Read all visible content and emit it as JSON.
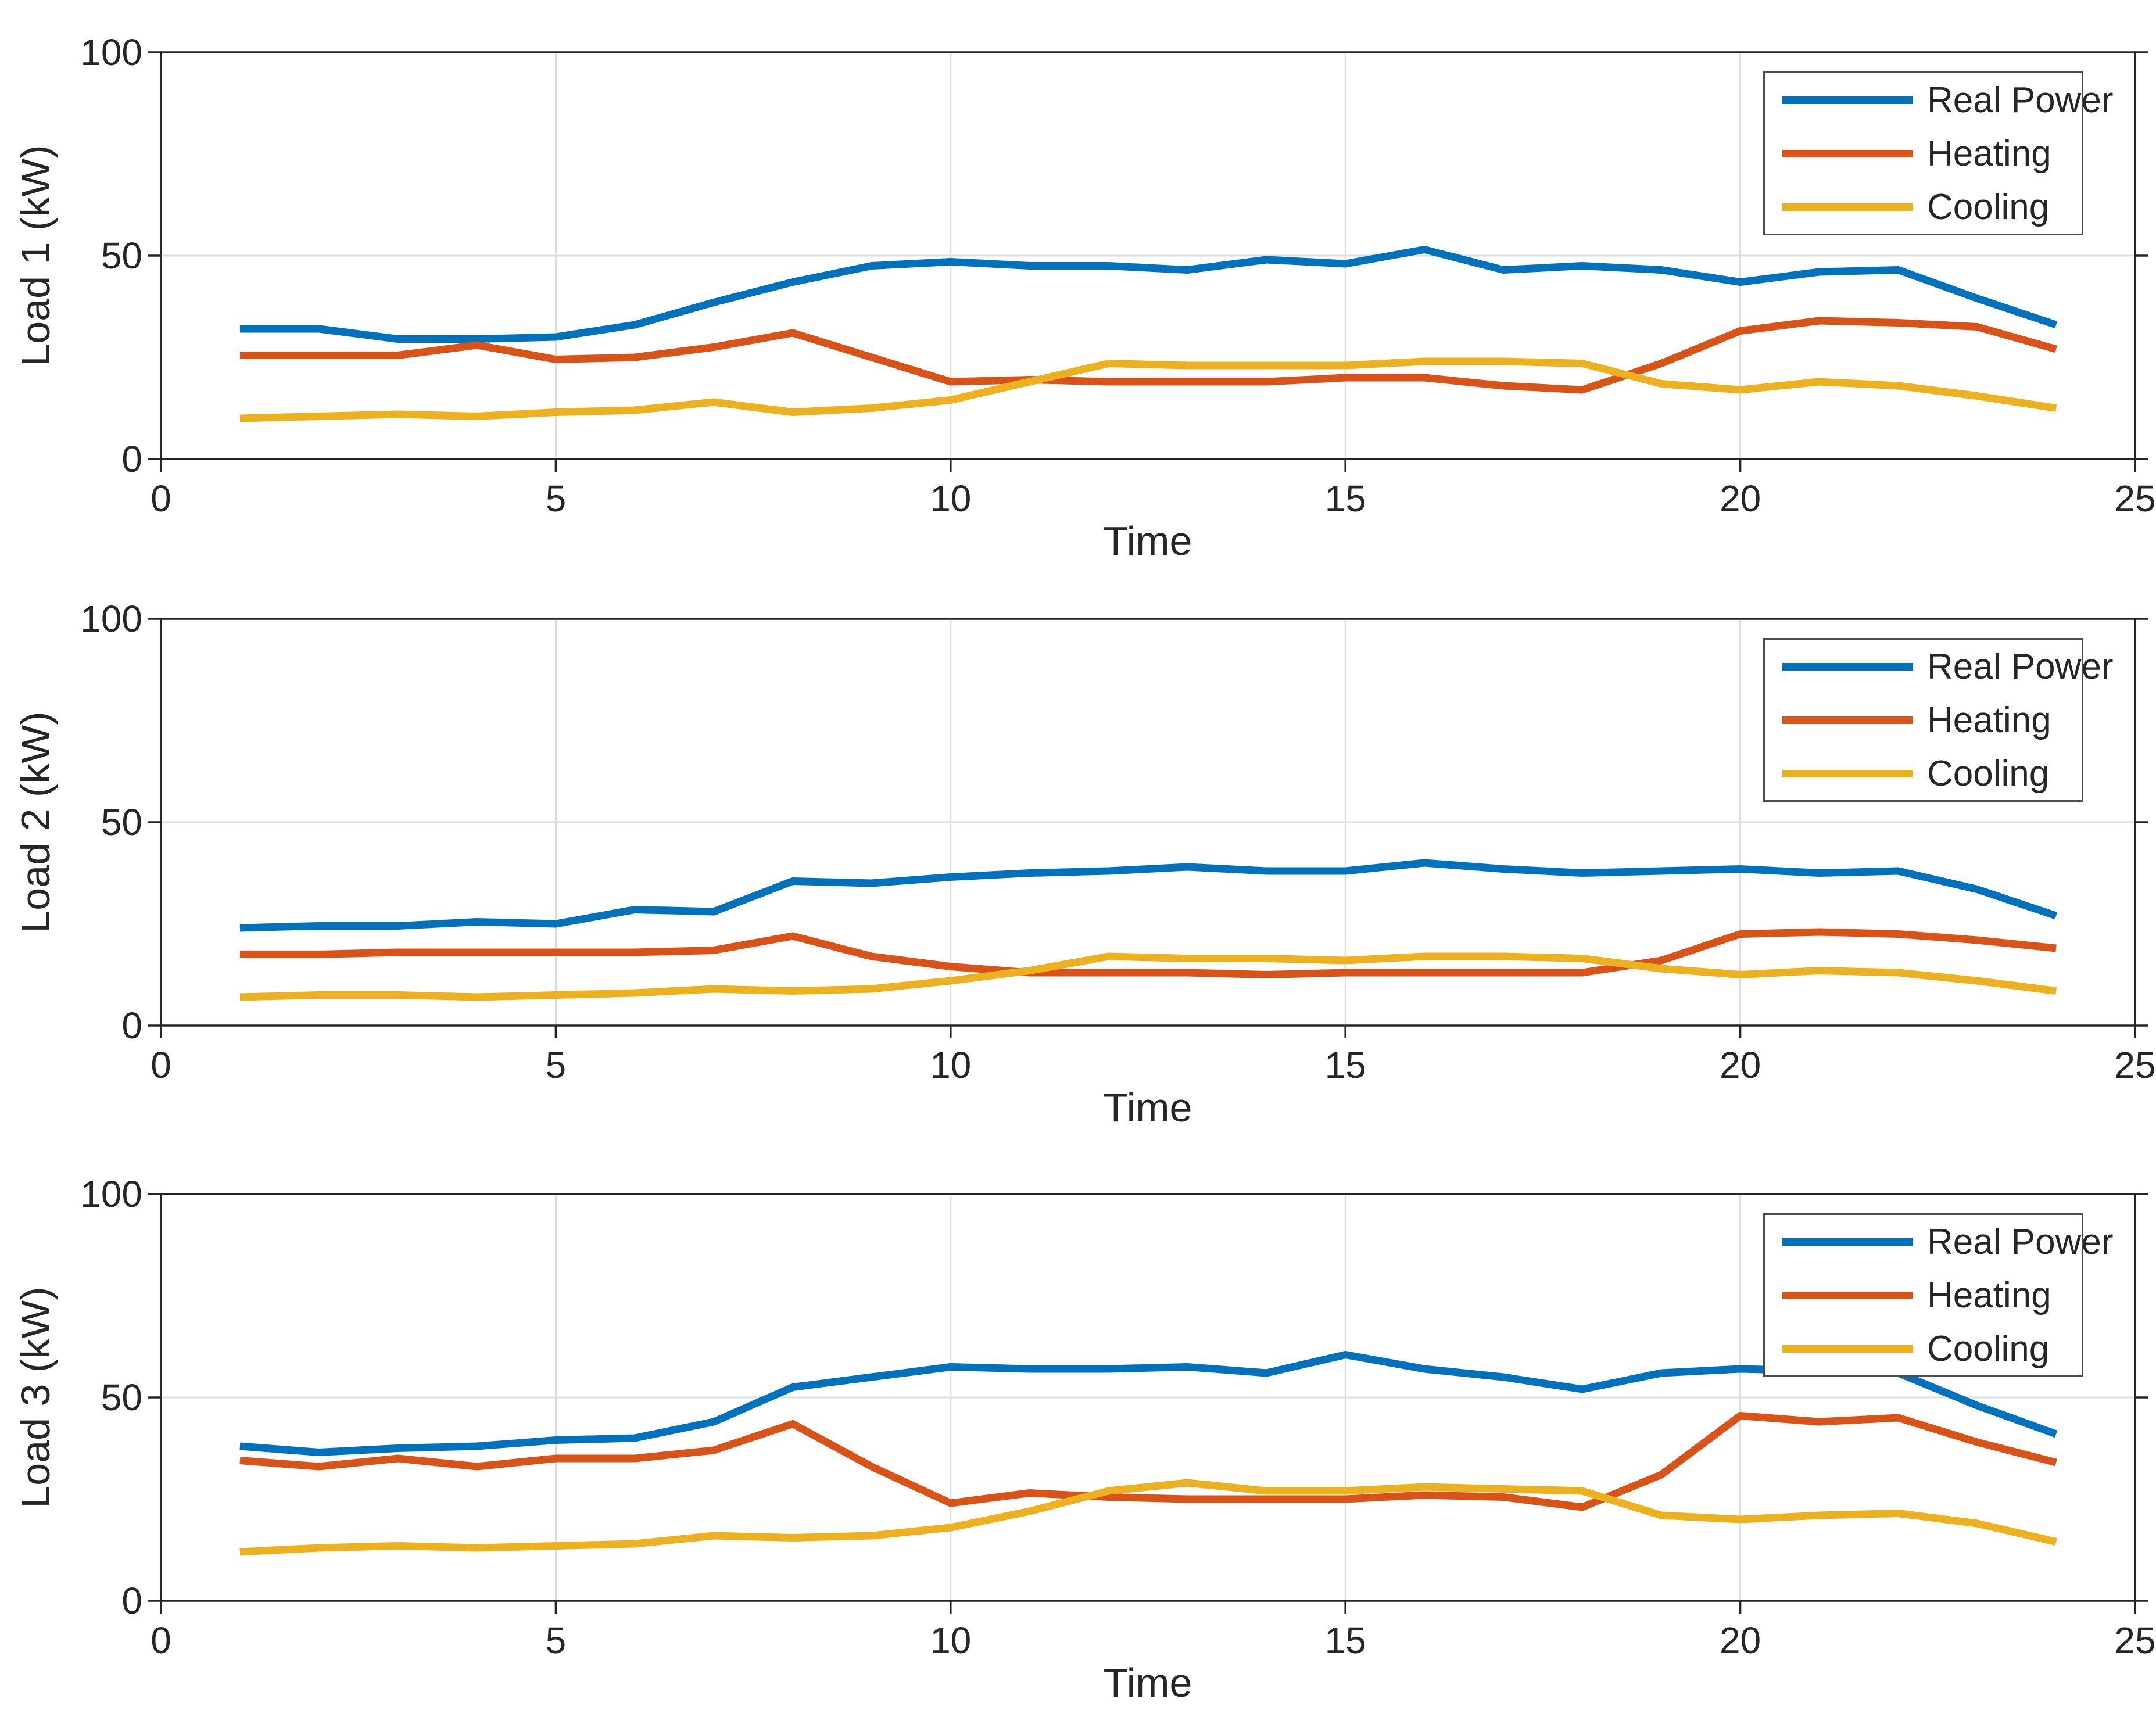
{
  "figure": {
    "background_color": "#ffffff",
    "axes_color": "#262626",
    "grid_color": "#dedede",
    "legend_border_color": "#4d4d4d"
  },
  "legend": {
    "items": [
      "Real Power",
      "Heating",
      "Cooling"
    ]
  },
  "series_colors": [
    "#0072BD",
    "#D95319",
    "#EDB120"
  ],
  "chart_data": [
    {
      "type": "line",
      "ylabel": "Load 1 (kW)",
      "xlabel": "Time",
      "xlim": [
        0,
        25
      ],
      "ylim": [
        0,
        100
      ],
      "xticks": [
        0,
        5,
        10,
        15,
        20,
        25
      ],
      "yticks": [
        0,
        50,
        100
      ],
      "grid": true,
      "legend_position": "top-right",
      "x": [
        1,
        2,
        3,
        4,
        5,
        6,
        7,
        8,
        9,
        10,
        11,
        12,
        13,
        14,
        15,
        16,
        17,
        18,
        19,
        20,
        21,
        22,
        23,
        24
      ],
      "series": [
        {
          "name": "Real Power",
          "values": [
            32,
            32,
            29.5,
            29.5,
            30,
            33,
            38.5,
            43.5,
            47.5,
            48.5,
            47.5,
            47.5,
            46.5,
            49,
            48,
            51.5,
            46.5,
            47.5,
            46.5,
            43.5,
            46,
            46.5,
            39.5,
            33
          ]
        },
        {
          "name": "Heating",
          "values": [
            25.5,
            25.5,
            25.5,
            28,
            24.5,
            25,
            27.5,
            31,
            25,
            19,
            19.5,
            19,
            19,
            19,
            20,
            20,
            18,
            17,
            23.5,
            31.5,
            34,
            33.5,
            32.5,
            27
          ]
        },
        {
          "name": "Cooling",
          "values": [
            10,
            10.5,
            11,
            10.5,
            11.5,
            12,
            14,
            11.5,
            12.5,
            14.5,
            19,
            23.5,
            23,
            23,
            23,
            24,
            24,
            23.5,
            18.5,
            17,
            19,
            18,
            15.5,
            12.5
          ]
        }
      ]
    },
    {
      "type": "line",
      "ylabel": "Load 2 (kW)",
      "xlabel": "Time",
      "xlim": [
        0,
        25
      ],
      "ylim": [
        0,
        100
      ],
      "xticks": [
        0,
        5,
        10,
        15,
        20,
        25
      ],
      "yticks": [
        0,
        50,
        100
      ],
      "grid": true,
      "legend_position": "top-right",
      "x": [
        1,
        2,
        3,
        4,
        5,
        6,
        7,
        8,
        9,
        10,
        11,
        12,
        13,
        14,
        15,
        16,
        17,
        18,
        19,
        20,
        21,
        22,
        23,
        24
      ],
      "series": [
        {
          "name": "Real Power",
          "values": [
            24,
            24.5,
            24.5,
            25.5,
            25,
            28.5,
            28,
            35.5,
            35,
            36.5,
            37.5,
            38,
            39,
            38,
            38,
            40,
            38.5,
            37.5,
            38,
            38.5,
            37.5,
            38,
            33.5,
            27
          ]
        },
        {
          "name": "Heating",
          "values": [
            17.5,
            17.5,
            18,
            18,
            18,
            18,
            18.5,
            22,
            17,
            14.5,
            13,
            13,
            13,
            12.5,
            13,
            13,
            13,
            13,
            16,
            22.5,
            23,
            22.5,
            21,
            19
          ]
        },
        {
          "name": "Cooling",
          "values": [
            7,
            7.5,
            7.5,
            7,
            7.5,
            8,
            9,
            8.5,
            9,
            11,
            13.5,
            17,
            16.5,
            16.5,
            16,
            17,
            17,
            16.5,
            14,
            12.5,
            13.5,
            13,
            11,
            8.5
          ]
        }
      ]
    },
    {
      "type": "line",
      "ylabel": "Load 3 (kW)",
      "xlabel": "Time",
      "xlim": [
        0,
        25
      ],
      "ylim": [
        0,
        100
      ],
      "xticks": [
        0,
        5,
        10,
        15,
        20,
        25
      ],
      "yticks": [
        0,
        50,
        100
      ],
      "grid": true,
      "legend_position": "top-right",
      "x": [
        1,
        2,
        3,
        4,
        5,
        6,
        7,
        8,
        9,
        10,
        11,
        12,
        13,
        14,
        15,
        16,
        17,
        18,
        19,
        20,
        21,
        22,
        23,
        24
      ],
      "series": [
        {
          "name": "Real Power",
          "values": [
            38,
            36.5,
            37.5,
            38,
            39.5,
            40,
            44,
            52.5,
            55,
            57.5,
            57,
            57,
            57.5,
            56,
            60.5,
            57,
            55,
            52,
            56,
            57,
            56.5,
            56,
            48,
            41
          ]
        },
        {
          "name": "Heating",
          "values": [
            34.5,
            33,
            35,
            33,
            35,
            35,
            37,
            43.5,
            33,
            24,
            26.5,
            25.5,
            25,
            25,
            25,
            26,
            25.5,
            23,
            31,
            45.5,
            44,
            45,
            39,
            34
          ]
        },
        {
          "name": "Cooling",
          "values": [
            12,
            13,
            13.5,
            13,
            13.5,
            14,
            16,
            15.5,
            16,
            18,
            22,
            27,
            29,
            27,
            27,
            28,
            27.5,
            27,
            21,
            20,
            21,
            21.5,
            19,
            14.5
          ]
        }
      ]
    }
  ]
}
